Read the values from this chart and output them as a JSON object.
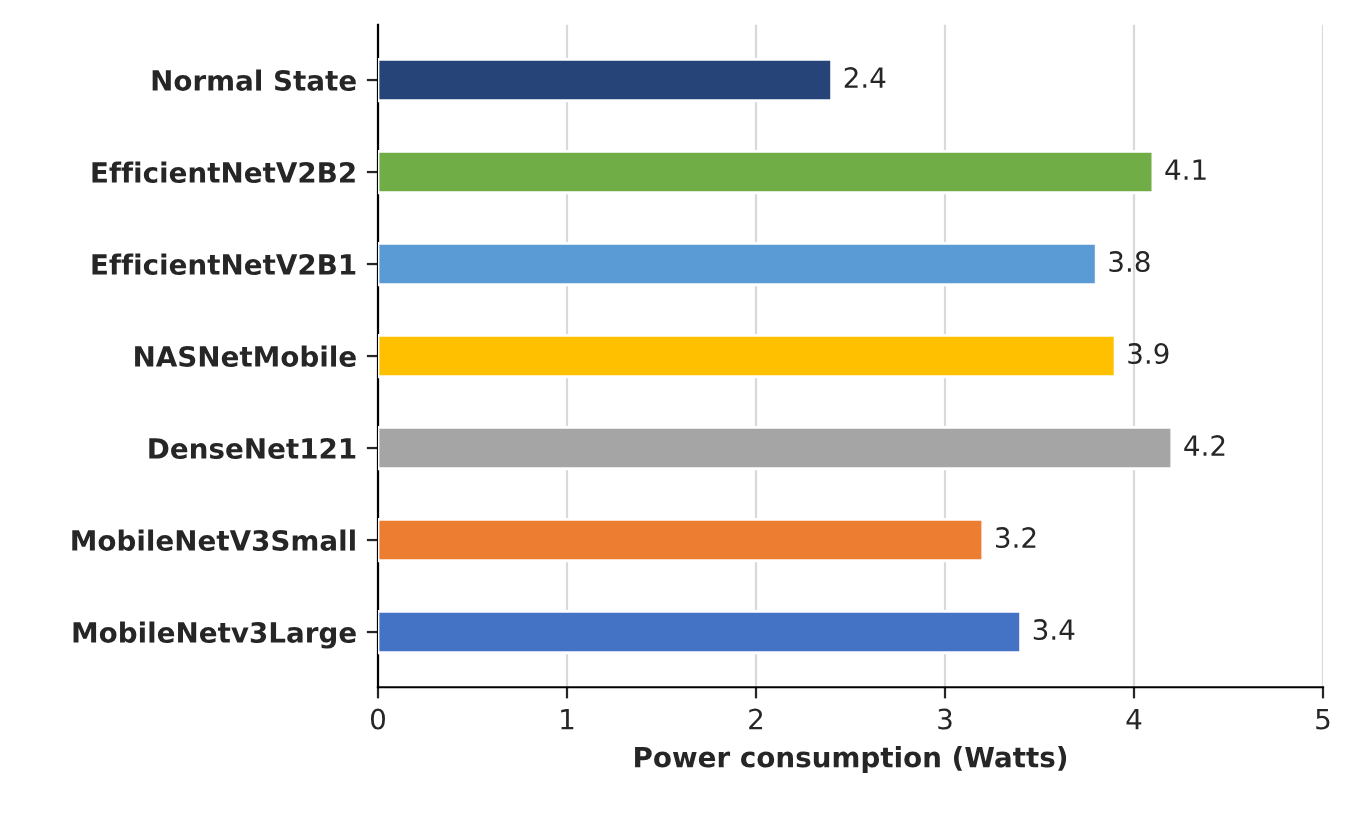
{
  "chart_data": {
    "type": "bar",
    "orientation": "horizontal",
    "xlabel": "Power consumption (Watts)",
    "categories": [
      "Normal State",
      "EfficientNetV2B2",
      "EfficientNetV2B1",
      "NASNetMobile",
      "DenseNet121",
      "MobileNetV3Small",
      "MobileNetv3Large"
    ],
    "values": [
      2.4,
      4.1,
      3.8,
      3.9,
      4.2,
      3.2,
      3.4
    ],
    "colors": [
      "#264478",
      "#70ad47",
      "#5b9bd5",
      "#ffc000",
      "#a5a5a5",
      "#ed7d31",
      "#4472c4"
    ],
    "xlim": [
      0,
      5
    ],
    "xticks": [
      0,
      1,
      2,
      3,
      4,
      5
    ],
    "grid": "x",
    "data_labels": true,
    "legend": false
  }
}
